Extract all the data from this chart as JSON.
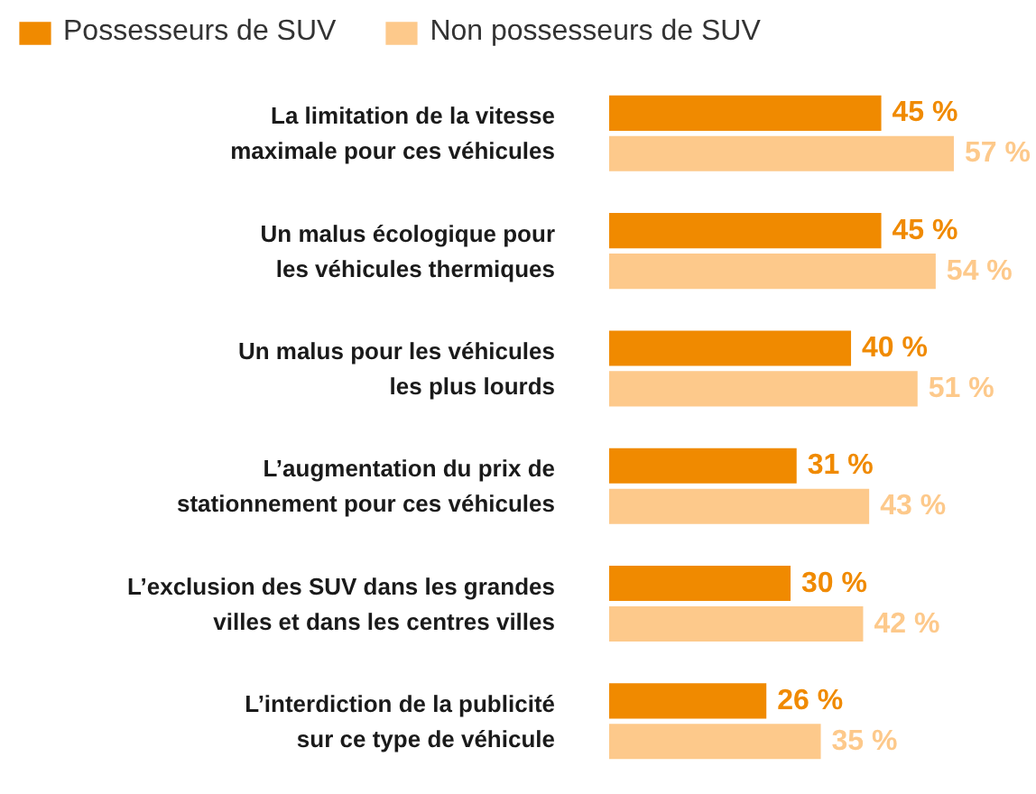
{
  "chart_data": {
    "type": "bar",
    "orientation": "horizontal",
    "categories": [
      "La limitation de la vitesse\nmaximale pour ces véhicules",
      "Un malus écologique pour\nles véhicules thermiques",
      "Un malus pour les véhicules\nles plus lourds",
      "L’augmentation du prix de\nstationnement pour ces véhicules",
      "L’exclusion des SUV dans les grandes\nvilles et dans les centres villes",
      "L’interdiction de la publicité\nsur ce type de véhicule"
    ],
    "series": [
      {
        "name": "Possesseurs de SUV",
        "color": "#f08a00",
        "values": [
          45,
          45,
          40,
          31,
          30,
          26
        ],
        "value_labels": [
          "45 %",
          "45 %",
          "40 %",
          "31 %",
          "30 %",
          "26 %"
        ]
      },
      {
        "name": "Non possesseurs de SUV",
        "color": "#fdc98b",
        "values": [
          57,
          54,
          51,
          43,
          42,
          35
        ],
        "value_labels": [
          "57 %",
          "54 %",
          "51 %",
          "43 %",
          "42 %",
          "35 %"
        ]
      }
    ],
    "legend": "top left",
    "grid": false
  }
}
